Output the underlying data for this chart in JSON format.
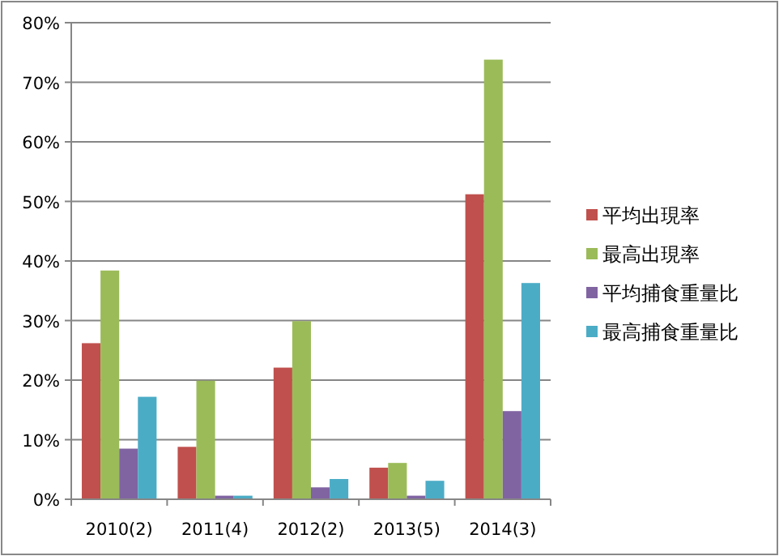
{
  "chart_data": {
    "type": "bar",
    "categories": [
      "2010(2)",
      "2011(4)",
      "2012(2)",
      "2013(5)",
      "2014(3)"
    ],
    "series": [
      {
        "name": "平均出現率",
        "color": "#c0504d",
        "values": [
          26.2,
          8.8,
          22.1,
          5.3,
          51.2
        ]
      },
      {
        "name": "最高出現率",
        "color": "#9bbb59",
        "values": [
          38.4,
          19.9,
          29.9,
          6.1,
          73.8
        ]
      },
      {
        "name": "平均捕食重量比",
        "color": "#8064a2",
        "values": [
          8.5,
          0.6,
          2.0,
          0.6,
          14.8
        ]
      },
      {
        "name": "最高捕食重量比",
        "color": "#4bacc6",
        "values": [
          17.2,
          0.6,
          3.4,
          3.1,
          36.3
        ]
      }
    ],
    "ylim": [
      0,
      80
    ],
    "yticks": [
      {
        "value": 0,
        "label": "0%"
      },
      {
        "value": 10,
        "label": "10%"
      },
      {
        "value": 20,
        "label": "20%"
      },
      {
        "value": 30,
        "label": "30%"
      },
      {
        "value": 40,
        "label": "40%"
      },
      {
        "value": 50,
        "label": "50%"
      },
      {
        "value": 60,
        "label": "60%"
      },
      {
        "value": 70,
        "label": "70%"
      },
      {
        "value": 80,
        "label": "80%"
      }
    ],
    "grid": "y",
    "legend": "right"
  }
}
